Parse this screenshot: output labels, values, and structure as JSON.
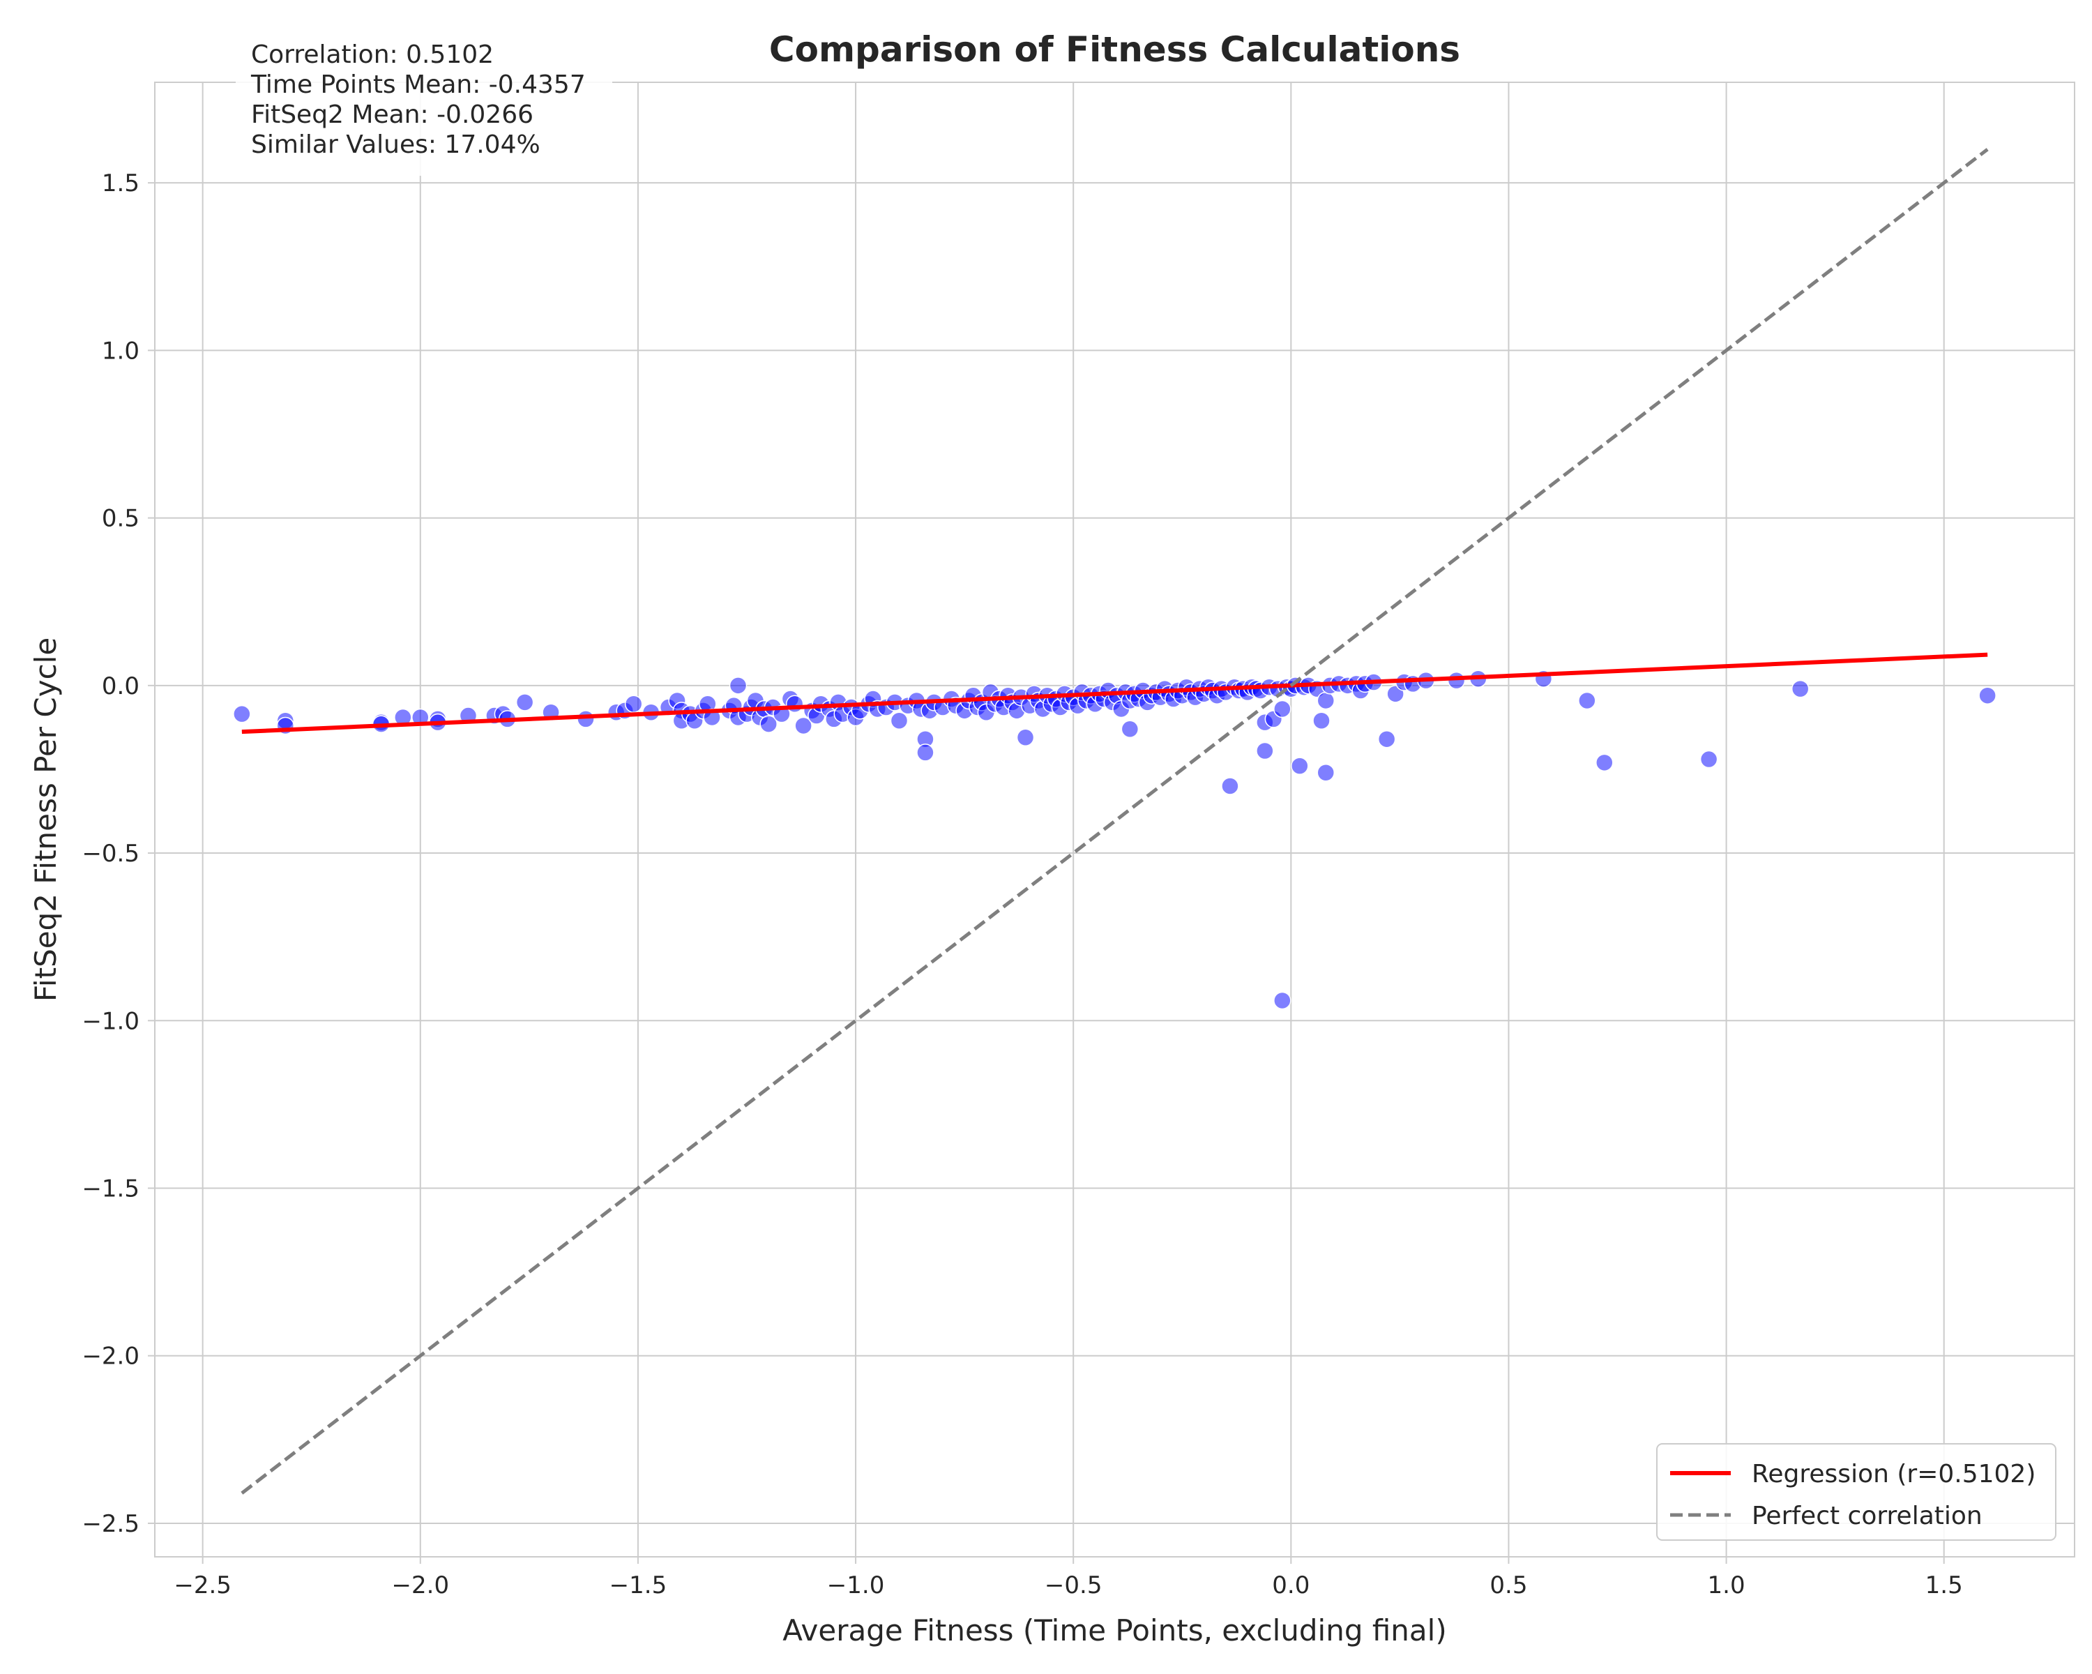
{
  "chart_data": {
    "type": "scatter",
    "title": "Comparison of Fitness Calculations",
    "xlabel": "Average Fitness (Time Points, excluding final)",
    "ylabel": "FitSeq2 Fitness Per Cycle",
    "xlim": [
      -2.61,
      1.8
    ],
    "ylim": [
      -2.6,
      1.8
    ],
    "xticks": [
      -2.5,
      -2.0,
      -1.5,
      -1.0,
      -0.5,
      0.0,
      0.5,
      1.0,
      1.5
    ],
    "xtick_labels": [
      "−2.5",
      "−2.0",
      "−1.5",
      "−1.0",
      "−0.5",
      "0.0",
      "0.5",
      "1.0",
      "1.5"
    ],
    "yticks": [
      -2.5,
      -2.0,
      -1.5,
      -1.0,
      -0.5,
      0.0,
      0.5,
      1.0,
      1.5
    ],
    "ytick_labels": [
      "−2.5",
      "−2.0",
      "−1.5",
      "−1.0",
      "−0.5",
      "0.0",
      "0.5",
      "1.0",
      "1.5"
    ],
    "grid": true,
    "legend_position": "lower-right",
    "stats_text": [
      "Correlation: 0.5102",
      "Time Points Mean: -0.4357",
      "FitSeq2 Mean: -0.0266",
      "Similar Values: 17.04%"
    ],
    "point_color": "#0000ff",
    "series": [
      {
        "kind": "scatter",
        "points": [
          [
            -2.41,
            -0.085
          ],
          [
            -2.31,
            -0.105
          ],
          [
            -2.31,
            -0.12
          ],
          [
            -2.09,
            -0.11
          ],
          [
            -2.09,
            -0.115
          ],
          [
            -2.04,
            -0.095
          ],
          [
            -2.0,
            -0.095
          ],
          [
            -1.96,
            -0.1
          ],
          [
            -1.96,
            -0.11
          ],
          [
            -1.89,
            -0.09
          ],
          [
            -1.83,
            -0.09
          ],
          [
            -1.81,
            -0.085
          ],
          [
            -1.8,
            -0.1
          ],
          [
            -1.76,
            -0.05
          ],
          [
            -1.7,
            -0.08
          ],
          [
            -1.62,
            -0.1
          ],
          [
            -1.55,
            -0.08
          ],
          [
            -1.53,
            -0.075
          ],
          [
            -1.51,
            -0.055
          ],
          [
            -1.47,
            -0.08
          ],
          [
            -1.43,
            -0.065
          ],
          [
            -1.41,
            -0.045
          ],
          [
            -1.4,
            -0.075
          ],
          [
            -1.4,
            -0.105
          ],
          [
            -1.38,
            -0.085
          ],
          [
            -1.37,
            -0.105
          ],
          [
            -1.35,
            -0.075
          ],
          [
            -1.34,
            -0.055
          ],
          [
            -1.33,
            -0.095
          ],
          [
            -1.29,
            -0.075
          ],
          [
            -1.28,
            -0.06
          ],
          [
            -1.27,
            0.0
          ],
          [
            -1.27,
            -0.095
          ],
          [
            -1.25,
            -0.085
          ],
          [
            -1.24,
            -0.065
          ],
          [
            -1.23,
            -0.045
          ],
          [
            -1.22,
            -0.095
          ],
          [
            -1.21,
            -0.07
          ],
          [
            -1.2,
            -0.115
          ],
          [
            -1.19,
            -0.065
          ],
          [
            -1.17,
            -0.085
          ],
          [
            -1.15,
            -0.04
          ],
          [
            -1.14,
            -0.055
          ],
          [
            -1.12,
            -0.12
          ],
          [
            -1.1,
            -0.075
          ],
          [
            -1.09,
            -0.09
          ],
          [
            -1.08,
            -0.055
          ],
          [
            -1.06,
            -0.07
          ],
          [
            -1.05,
            -0.1
          ],
          [
            -1.04,
            -0.05
          ],
          [
            -1.03,
            -0.085
          ],
          [
            -1.01,
            -0.065
          ],
          [
            -1.0,
            -0.095
          ],
          [
            -0.99,
            -0.075
          ],
          [
            -0.97,
            -0.055
          ],
          [
            -0.96,
            -0.04
          ],
          [
            -0.95,
            -0.07
          ],
          [
            -0.93,
            -0.065
          ],
          [
            -0.91,
            -0.05
          ],
          [
            -0.9,
            -0.105
          ],
          [
            -0.88,
            -0.06
          ],
          [
            -0.86,
            -0.045
          ],
          [
            -0.85,
            -0.07
          ],
          [
            -0.84,
            -0.16
          ],
          [
            -0.84,
            -0.2
          ],
          [
            -0.83,
            -0.075
          ],
          [
            -0.82,
            -0.05
          ],
          [
            -0.8,
            -0.065
          ],
          [
            -0.78,
            -0.04
          ],
          [
            -0.77,
            -0.06
          ],
          [
            -0.75,
            -0.075
          ],
          [
            -0.74,
            -0.045
          ],
          [
            -0.73,
            -0.03
          ],
          [
            -0.72,
            -0.065
          ],
          [
            -0.71,
            -0.05
          ],
          [
            -0.7,
            -0.08
          ],
          [
            -0.69,
            -0.02
          ],
          [
            -0.68,
            -0.055
          ],
          [
            -0.67,
            -0.04
          ],
          [
            -0.66,
            -0.065
          ],
          [
            -0.65,
            -0.03
          ],
          [
            -0.64,
            -0.05
          ],
          [
            -0.63,
            -0.075
          ],
          [
            -0.62,
            -0.035
          ],
          [
            -0.61,
            -0.155
          ],
          [
            -0.6,
            -0.06
          ],
          [
            -0.59,
            -0.025
          ],
          [
            -0.58,
            -0.045
          ],
          [
            -0.57,
            -0.07
          ],
          [
            -0.56,
            -0.03
          ],
          [
            -0.55,
            -0.055
          ],
          [
            -0.54,
            -0.04
          ],
          [
            -0.53,
            -0.065
          ],
          [
            -0.52,
            -0.025
          ],
          [
            -0.51,
            -0.05
          ],
          [
            -0.5,
            -0.035
          ],
          [
            -0.49,
            -0.06
          ],
          [
            -0.48,
            -0.02
          ],
          [
            -0.47,
            -0.045
          ],
          [
            -0.46,
            -0.03
          ],
          [
            -0.45,
            -0.055
          ],
          [
            -0.44,
            -0.025
          ],
          [
            -0.43,
            -0.04
          ],
          [
            -0.42,
            -0.015
          ],
          [
            -0.41,
            -0.05
          ],
          [
            -0.4,
            -0.03
          ],
          [
            -0.39,
            -0.07
          ],
          [
            -0.38,
            -0.02
          ],
          [
            -0.37,
            -0.045
          ],
          [
            -0.37,
            -0.13
          ],
          [
            -0.36,
            -0.025
          ],
          [
            -0.35,
            -0.04
          ],
          [
            -0.34,
            -0.015
          ],
          [
            -0.33,
            -0.05
          ],
          [
            -0.32,
            -0.03
          ],
          [
            -0.31,
            -0.02
          ],
          [
            -0.3,
            -0.035
          ],
          [
            -0.29,
            -0.01
          ],
          [
            -0.28,
            -0.025
          ],
          [
            -0.27,
            -0.04
          ],
          [
            -0.26,
            -0.015
          ],
          [
            -0.25,
            -0.03
          ],
          [
            -0.24,
            -0.005
          ],
          [
            -0.23,
            -0.02
          ],
          [
            -0.22,
            -0.035
          ],
          [
            -0.21,
            -0.01
          ],
          [
            -0.2,
            -0.025
          ],
          [
            -0.19,
            -0.005
          ],
          [
            -0.18,
            -0.015
          ],
          [
            -0.17,
            -0.03
          ],
          [
            -0.16,
            -0.01
          ],
          [
            -0.15,
            -0.02
          ],
          [
            -0.14,
            -0.3
          ],
          [
            -0.13,
            -0.005
          ],
          [
            -0.12,
            -0.015
          ],
          [
            -0.11,
            -0.01
          ],
          [
            -0.1,
            -0.02
          ],
          [
            -0.09,
            -0.005
          ],
          [
            -0.08,
            -0.01
          ],
          [
            -0.07,
            -0.015
          ],
          [
            -0.06,
            -0.11
          ],
          [
            -0.06,
            -0.195
          ],
          [
            -0.05,
            -0.005
          ],
          [
            -0.04,
            -0.1
          ],
          [
            -0.03,
            -0.01
          ],
          [
            -0.02,
            -0.94
          ],
          [
            -0.02,
            -0.07
          ],
          [
            -0.01,
            -0.005
          ],
          [
            0.0,
            -0.01
          ],
          [
            0.01,
            0.0
          ],
          [
            0.02,
            -0.24
          ],
          [
            0.03,
            -0.005
          ],
          [
            0.04,
            0.0
          ],
          [
            0.06,
            -0.01
          ],
          [
            0.07,
            -0.105
          ],
          [
            0.08,
            -0.045
          ],
          [
            0.08,
            -0.26
          ],
          [
            0.09,
            0.0
          ],
          [
            0.11,
            0.005
          ],
          [
            0.13,
            0.0
          ],
          [
            0.15,
            0.005
          ],
          [
            0.16,
            -0.015
          ],
          [
            0.17,
            0.005
          ],
          [
            0.19,
            0.01
          ],
          [
            0.22,
            -0.16
          ],
          [
            0.24,
            -0.025
          ],
          [
            0.26,
            0.01
          ],
          [
            0.28,
            0.005
          ],
          [
            0.31,
            0.015
          ],
          [
            0.38,
            0.015
          ],
          [
            0.43,
            0.02
          ],
          [
            0.58,
            0.02
          ],
          [
            0.68,
            -0.045
          ],
          [
            0.72,
            -0.23
          ],
          [
            0.96,
            -0.22
          ],
          [
            1.17,
            -0.01
          ],
          [
            1.6,
            -0.03
          ]
        ]
      },
      {
        "kind": "line",
        "name": "Regression (r=0.5102)",
        "color": "#ff0000",
        "dash": "solid",
        "points": [
          [
            -2.41,
            -0.138
          ],
          [
            1.6,
            0.092
          ]
        ]
      },
      {
        "kind": "line",
        "name": "Perfect correlation",
        "color": "#7f7f7f",
        "dash": "dashed",
        "points": [
          [
            -2.41,
            -2.41
          ],
          [
            1.6,
            1.6
          ]
        ]
      }
    ]
  }
}
